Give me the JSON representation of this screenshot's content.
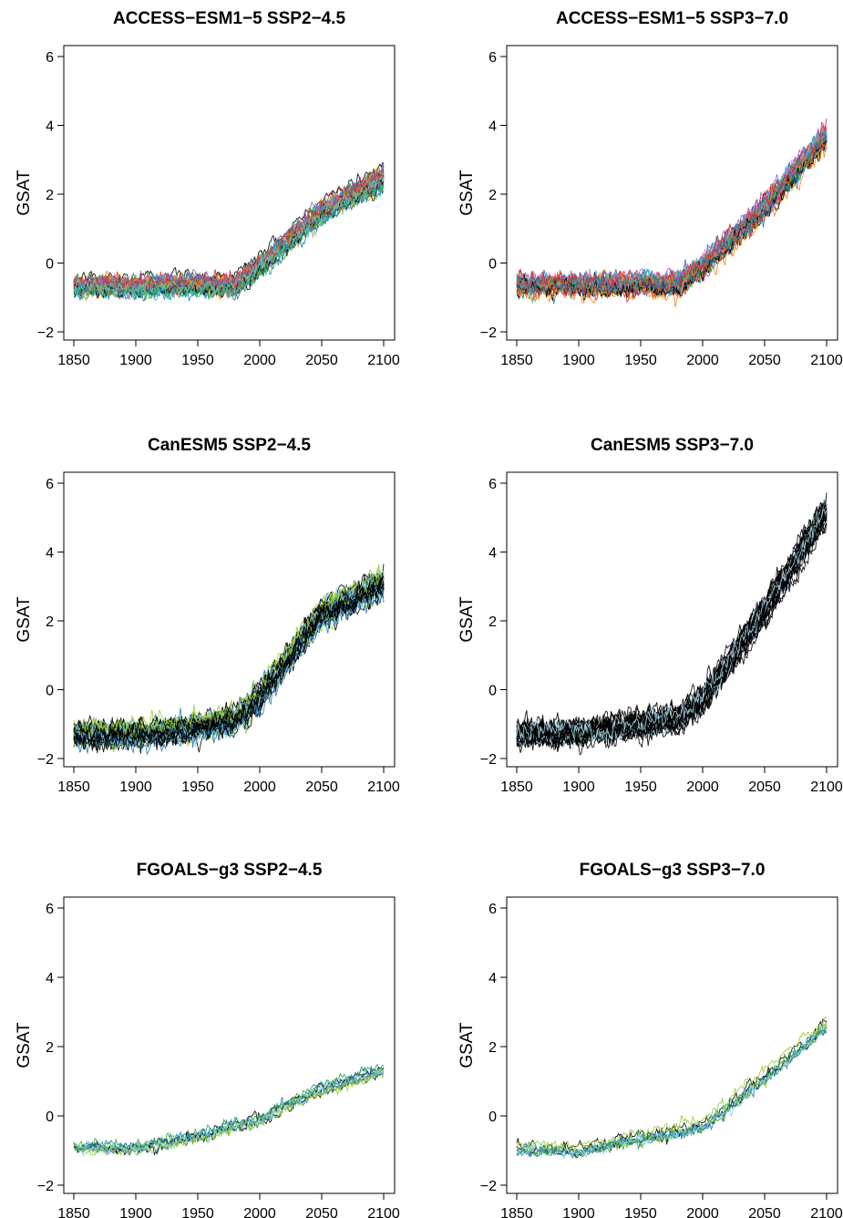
{
  "chart_data": [
    {
      "type": "line",
      "title": "ACCESS−ESM1−5 SSP2−4.5",
      "ylabel": "GSAT",
      "xlabel": "",
      "xlim": [
        1850,
        2100
      ],
      "ylim": [
        -2,
        6
      ],
      "xticks": [
        1850,
        1900,
        1950,
        2000,
        2050,
        2100
      ],
      "yticks": [
        -2,
        0,
        2,
        4,
        6
      ],
      "ytick_labels": [
        "−2",
        "0",
        "2",
        "4",
        "6"
      ],
      "series": [
        {
          "x": [
            1850,
            1900,
            1950,
            1980,
            2000,
            2050,
            2100
          ],
          "values": [
            -0.65,
            -0.65,
            -0.6,
            -0.65,
            -0.05,
            1.5,
            2.5
          ]
        }
      ],
      "ensemble_colors": [
        "#000000",
        "#1f77b4",
        "#2ca02c",
        "#ff7f0e",
        "#d62728",
        "#9467bd",
        "#17becf",
        "#8fbc8f"
      ],
      "ensemble_members": 40,
      "spread": 0.35
    },
    {
      "type": "line",
      "title": "ACCESS−ESM1−5 SSP3−7.0",
      "ylabel": "GSAT",
      "xlabel": "",
      "xlim": [
        1850,
        2100
      ],
      "ylim": [
        -2,
        6
      ],
      "xticks": [
        1850,
        1900,
        1950,
        2000,
        2050,
        2100
      ],
      "yticks": [
        -2,
        0,
        2,
        4,
        6
      ],
      "ytick_labels": [
        "−2",
        "0",
        "2",
        "4",
        "6"
      ],
      "series": [
        {
          "x": [
            1850,
            1900,
            1950,
            1980,
            2000,
            2050,
            2100
          ],
          "values": [
            -0.65,
            -0.65,
            -0.6,
            -0.65,
            -0.1,
            1.6,
            3.7
          ]
        }
      ],
      "ensemble_colors": [
        "#000000",
        "#ff7f0e",
        "#d62728",
        "#1f77b4",
        "#9467bd",
        "#2ca02c",
        "#e377c2",
        "#8c564b",
        "#17becf"
      ],
      "ensemble_members": 40,
      "spread": 0.4
    },
    {
      "type": "line",
      "title": "CanESM5 SSP2−4.5",
      "ylabel": "GSAT",
      "xlabel": "",
      "xlim": [
        1850,
        2100
      ],
      "ylim": [
        -2,
        6
      ],
      "xticks": [
        1850,
        1900,
        1950,
        2000,
        2050,
        2100
      ],
      "yticks": [
        -2,
        0,
        2,
        4,
        6
      ],
      "ytick_labels": [
        "−2",
        "0",
        "2",
        "4",
        "6"
      ],
      "series": [
        {
          "x": [
            1850,
            1900,
            1950,
            1980,
            2000,
            2050,
            2100
          ],
          "values": [
            -1.3,
            -1.3,
            -1.1,
            -0.9,
            -0.2,
            2.2,
            3.1
          ]
        }
      ],
      "ensemble_colors": [
        "#000000",
        "#000000",
        "#000000",
        "#1f77b4",
        "#9acd32",
        "#87ceeb"
      ],
      "ensemble_members": 45,
      "spread": 0.45
    },
    {
      "type": "line",
      "title": "CanESM5 SSP3−7.0",
      "ylabel": "GSAT",
      "xlabel": "",
      "xlim": [
        1850,
        2100
      ],
      "ylim": [
        -2,
        6
      ],
      "xticks": [
        1850,
        1900,
        1950,
        2000,
        2050,
        2100
      ],
      "yticks": [
        -2,
        0,
        2,
        4,
        6
      ],
      "ytick_labels": [
        "−2",
        "0",
        "2",
        "4",
        "6"
      ],
      "series": [
        {
          "x": [
            1850,
            1900,
            1950,
            1980,
            2000,
            2050,
            2100
          ],
          "values": [
            -1.3,
            -1.25,
            -1.0,
            -0.85,
            -0.3,
            2.3,
            5.2
          ]
        }
      ],
      "ensemble_colors": [
        "#000000",
        "#000000",
        "#000000",
        "#000000",
        "#add8e6"
      ],
      "ensemble_members": 45,
      "spread": 0.45
    },
    {
      "type": "line",
      "title": "FGOALS−g3 SSP2−4.5",
      "ylabel": "GSAT",
      "xlabel": "",
      "xlim": [
        1850,
        2100
      ],
      "ylim": [
        -2,
        6
      ],
      "xticks": [
        1850,
        1900,
        1950,
        2000,
        2050,
        2100
      ],
      "yticks": [
        -2,
        0,
        2,
        4,
        6
      ],
      "ytick_labels": [
        "−2",
        "0",
        "2",
        "4",
        "6"
      ],
      "series": [
        {
          "x": [
            1850,
            1900,
            1950,
            2000,
            2050,
            2100
          ],
          "values": [
            -0.95,
            -1.0,
            -0.65,
            -0.2,
            0.7,
            1.2
          ]
        }
      ],
      "ensemble_colors": [
        "#000000",
        "#2ca02c",
        "#9acd32",
        "#1f77b4",
        "#87ceeb"
      ],
      "ensemble_members": 10,
      "spread": 0.25
    },
    {
      "type": "line",
      "title": "FGOALS−g3 SSP3−7.0",
      "ylabel": "GSAT",
      "xlabel": "",
      "xlim": [
        1850,
        2100
      ],
      "ylim": [
        -2,
        6
      ],
      "xticks": [
        1850,
        1900,
        1950,
        2000,
        2050,
        2100
      ],
      "yticks": [
        -2,
        0,
        2,
        4,
        6
      ],
      "ytick_labels": [
        "−2",
        "0",
        "2",
        "4",
        "6"
      ],
      "series": [
        {
          "x": [
            1850,
            1900,
            1950,
            2000,
            2050,
            2100
          ],
          "values": [
            -0.95,
            -1.0,
            -0.65,
            -0.3,
            1.1,
            2.6
          ]
        }
      ],
      "ensemble_colors": [
        "#000000",
        "#2ca02c",
        "#9acd32",
        "#1f77b4",
        "#87ceeb"
      ],
      "ensemble_members": 10,
      "spread": 0.25
    }
  ]
}
